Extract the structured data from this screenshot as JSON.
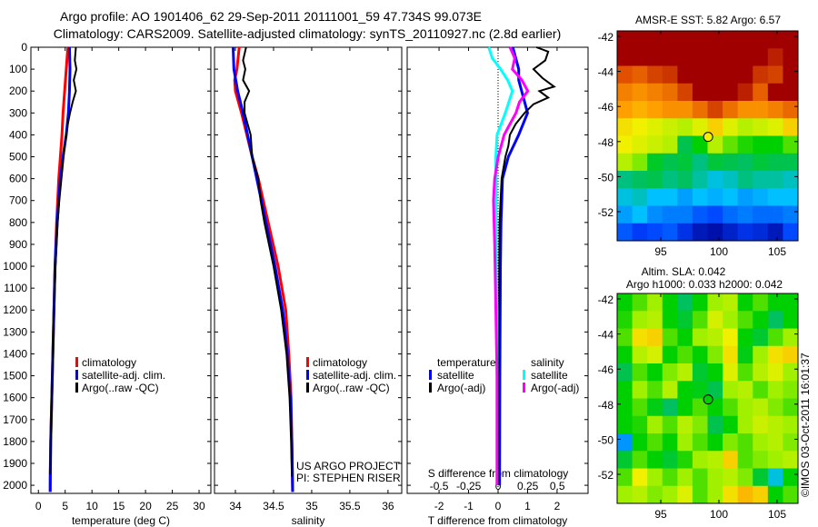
{
  "header": {
    "title_line1": "Argo profile: AO 1901406_62 29-Sep-2011 20111001_59 47.734S 99.073E",
    "title_line2": "Climatology: CARS2009. Satellite-adjusted climatology: synTS_20110927.nc (2.8d earlier)"
  },
  "credit": "©IMOS 03-Oct-2011 16:01:37",
  "colors": {
    "climatology": "#ff0000",
    "satellite": "#0000ff",
    "argo": "#000000",
    "s_satellite": "#00ffff",
    "s_argo": "#ff00ff"
  },
  "chart_data": [
    {
      "type": "line",
      "id": "temperature",
      "xlabel": "temperature (deg C)",
      "ylabel": "",
      "xlim": [
        -1.4,
        32.2
      ],
      "ylim": [
        2037,
        0
      ],
      "xticks": [
        "0",
        "5",
        "10",
        "15",
        "20",
        "25",
        "30"
      ],
      "xtick_values": [
        0,
        5,
        10,
        15,
        20,
        25,
        30
      ],
      "yticks": [
        "0",
        "100",
        "200",
        "300",
        "400",
        "500",
        "600",
        "700",
        "800",
        "900",
        "1000",
        "1100",
        "1200",
        "1300",
        "1400",
        "1500",
        "1600",
        "1700",
        "1800",
        "1900",
        "2000"
      ],
      "legend": [
        "climatology",
        "satellite-adj. clim.",
        "Argo(..raw -QC)"
      ],
      "series": [
        {
          "name": "climatology",
          "color": "#ff0000",
          "depth": [
            0,
            100,
            200,
            300,
            400,
            500,
            600,
            800,
            1000,
            1200,
            1500,
            1800,
            1950,
            2030
          ],
          "values": [
            5.5,
            5.2,
            4.9,
            4.6,
            4.4,
            4.1,
            3.8,
            3.4,
            3.1,
            2.9,
            2.6,
            2.3,
            2.2,
            2.2
          ]
        },
        {
          "name": "satellite-adj. clim.",
          "color": "#0000ff",
          "depth": [
            0,
            100,
            200,
            300,
            400,
            500,
            600,
            800,
            1000,
            1200,
            1500,
            1800,
            2030
          ],
          "values": [
            5.8,
            5.9,
            5.8,
            5.6,
            5.2,
            4.6,
            4.1,
            3.5,
            3.1,
            2.9,
            2.6,
            2.3,
            2.2
          ]
        },
        {
          "name": "Argo(..raw -QC)",
          "color": "#000000",
          "depth": [
            0,
            60,
            100,
            150,
            200,
            250,
            300,
            350,
            400,
            450,
            500,
            600,
            700,
            800,
            1000,
            1200,
            1500,
            1800,
            1950
          ],
          "values": [
            7.0,
            6.8,
            7.1,
            6.6,
            7.0,
            6.4,
            5.9,
            5.5,
            5.2,
            4.9,
            4.7,
            4.3,
            3.9,
            3.6,
            3.2,
            2.9,
            2.6,
            2.3,
            2.2
          ]
        }
      ]
    },
    {
      "type": "line",
      "id": "salinity",
      "xlabel": "salinity",
      "xlim": [
        33.726,
        36.18
      ],
      "ylim": [
        2037,
        0
      ],
      "xticks": [
        "34",
        "34.5",
        "35",
        "35.5",
        "36"
      ],
      "xtick_values": [
        34,
        34.5,
        35,
        35.5,
        36
      ],
      "legend": [
        "climatology",
        "satellite-adj. clim.",
        "Argo(..raw -QC)"
      ],
      "annotations": [
        "US ARGO PROJECT",
        "PI: STEPHEN RISER"
      ],
      "series": [
        {
          "name": "climatology",
          "color": "#ff0000",
          "depth": [
            0,
            100,
            150,
            200,
            300,
            400,
            500,
            600,
            800,
            1000,
            1200,
            1400,
            1600,
            1800,
            2030
          ],
          "values": [
            34.05,
            34.02,
            33.99,
            34.0,
            34.08,
            34.15,
            34.22,
            34.3,
            34.43,
            34.56,
            34.66,
            34.7,
            34.73,
            34.74,
            34.75
          ]
        },
        {
          "name": "satellite-adj. clim.",
          "color": "#0000ff",
          "depth": [
            0,
            100,
            200,
            300,
            400,
            500,
            600,
            800,
            1000,
            1200,
            1400,
            1600,
            1800,
            2030
          ],
          "values": [
            33.97,
            33.98,
            34.03,
            34.1,
            34.16,
            34.22,
            34.28,
            34.4,
            34.52,
            34.62,
            34.68,
            34.72,
            34.74,
            34.75
          ]
        },
        {
          "name": "Argo(..raw -QC)",
          "color": "#000000",
          "depth": [
            0,
            60,
            100,
            150,
            200,
            250,
            300,
            350,
            400,
            500,
            600,
            700,
            800,
            900,
            1000,
            1200,
            1400,
            1600,
            1800,
            1960
          ],
          "values": [
            34.14,
            34.1,
            34.13,
            34.1,
            34.18,
            34.12,
            34.12,
            34.16,
            34.2,
            34.22,
            34.3,
            34.33,
            34.38,
            34.44,
            34.5,
            34.6,
            34.67,
            34.71,
            34.73,
            34.74
          ]
        }
      ]
    },
    {
      "type": "line",
      "id": "difference",
      "xlabel": "T difference from climatology",
      "x2label": "S difference from climatology",
      "xlim": [
        -3.08,
        3.05
      ],
      "s_xlim": [
        -0.77,
        0.76
      ],
      "ylim": [
        2037,
        0
      ],
      "xticks": [
        "-2",
        "-1",
        "0",
        "1",
        "2"
      ],
      "xtick_values": [
        -2,
        -1,
        0,
        1,
        2
      ],
      "s_xticks": [
        "-0.5",
        "-0.25",
        "0",
        "0.25",
        "0.5"
      ],
      "s_xtick_values": [
        -0.5,
        -0.25,
        0,
        0.25,
        0.5
      ],
      "legend": {
        "temperature_heading": "temperature",
        "salinity_heading": "salinity",
        "t_sat": "satellite",
        "t_argo": "Argo(-adj)",
        "s_sat": "satellite",
        "s_argo": "Argo(-adj)"
      },
      "series": [
        {
          "name": "T satellite",
          "axis": "T",
          "color": "#0000ff",
          "depth": [
            0,
            50,
            100,
            150,
            200,
            300,
            400,
            500,
            600,
            800,
            1000,
            1500,
            2000
          ],
          "values": [
            0.5,
            0.6,
            0.7,
            0.7,
            0.8,
            1.0,
            0.7,
            0.35,
            0.15,
            0.1,
            0.08,
            0.06,
            0.05
          ]
        },
        {
          "name": "T Argo(-adj)",
          "color": "#000000",
          "axis": "T",
          "depth": [
            0,
            20,
            60,
            100,
            140,
            180,
            200,
            230,
            260,
            300,
            350,
            400,
            450,
            500,
            600,
            800,
            1000,
            1500,
            2000
          ],
          "values": [
            1.3,
            1.7,
            1.6,
            1.2,
            1.5,
            1.9,
            1.4,
            1.7,
            1.2,
            0.9,
            0.6,
            0.4,
            0.35,
            0.25,
            0.12,
            0.05,
            0.04,
            0.03,
            0.02
          ]
        },
        {
          "name": "S satellite",
          "axis": "S",
          "color": "#00ffff",
          "depth": [
            0,
            50,
            100,
            150,
            200,
            300,
            400,
            500,
            700,
            900,
            1200,
            1500,
            2000
          ],
          "values": [
            -0.08,
            -0.05,
            0.02,
            0.08,
            0.12,
            0.06,
            -0.01,
            -0.02,
            -0.02,
            -0.02,
            -0.01,
            -0.01,
            -0.01
          ]
        },
        {
          "name": "S Argo(-adj)",
          "axis": "S",
          "color": "#ff00ff",
          "depth": [
            0,
            50,
            100,
            150,
            200,
            250,
            300,
            400,
            500,
            600,
            700,
            900,
            1200,
            1500,
            2000
          ],
          "values": [
            0.1,
            0.14,
            0.12,
            0.2,
            0.25,
            0.18,
            0.15,
            0.05,
            0.0,
            -0.03,
            -0.04,
            -0.03,
            -0.02,
            -0.01,
            -0.01
          ]
        }
      ]
    },
    {
      "type": "heatmap",
      "id": "sst_map",
      "title": "AMSR-E SST: 5.82 Argo: 6.57",
      "xlim": [
        91.25,
        106.8
      ],
      "ylim": [
        -53.6,
        -41.7
      ],
      "xticks": [
        "95",
        "100",
        "105"
      ],
      "xtick_values": [
        95,
        100,
        105
      ],
      "yticks": [
        "-42",
        "-44",
        "-46",
        "-48",
        "-50",
        "-52"
      ],
      "ytick_values": [
        -42,
        -44,
        -46,
        -48,
        -50,
        -52
      ],
      "marker": {
        "lon": 99.073,
        "lat": -47.734,
        "value": 0.68
      },
      "grid_normalized": [
        [
          1,
          1,
          1,
          1,
          1,
          1,
          1,
          1,
          1,
          1,
          1,
          1
        ],
        [
          1,
          1,
          1,
          1,
          1,
          1,
          1,
          1,
          1,
          1,
          0.95,
          1
        ],
        [
          0.88,
          0.86,
          0.9,
          0.92,
          1,
          1,
          1,
          1,
          1,
          0.92,
          0.9,
          1
        ],
        [
          0.82,
          0.8,
          0.82,
          0.84,
          0.9,
          1,
          1,
          1,
          0.95,
          0.86,
          1,
          1
        ],
        [
          0.78,
          0.76,
          0.78,
          0.8,
          0.8,
          0.84,
          0.9,
          0.84,
          0.8,
          0.8,
          0.82,
          0.85
        ],
        [
          0.7,
          0.68,
          0.66,
          0.64,
          0.62,
          0.66,
          0.72,
          0.66,
          0.62,
          0.64,
          0.66,
          0.72
        ],
        [
          0.68,
          0.66,
          0.64,
          0.62,
          0.42,
          0.5,
          0.62,
          0.56,
          0.52,
          0.5,
          0.5,
          0.55
        ],
        [
          0.62,
          0.58,
          0.46,
          0.42,
          0.44,
          0.38,
          0.44,
          0.42,
          0.4,
          0.44,
          0.42,
          0.42
        ],
        [
          0.38,
          0.4,
          0.42,
          0.38,
          0.4,
          0.36,
          0.32,
          0.34,
          0.38,
          0.36,
          0.36,
          0.34
        ],
        [
          0.32,
          0.34,
          0.3,
          0.3,
          0.26,
          0.3,
          0.28,
          0.3,
          0.26,
          0.28,
          0.3,
          0.3
        ],
        [
          0.26,
          0.3,
          0.24,
          0.22,
          0.22,
          0.18,
          0.16,
          0.2,
          0.22,
          0.2,
          0.2,
          0.22
        ],
        [
          0.18,
          0.14,
          0.16,
          0.18,
          0.12,
          0.06,
          0.04,
          0.08,
          0.12,
          0.1,
          0.06,
          0.16
        ]
      ]
    },
    {
      "type": "heatmap",
      "id": "sla_map",
      "title": "Altim. SLA: 0.042",
      "subtitle": "Argo h1000: 0.033 h2000: 0.042",
      "xlim": [
        91.25,
        106.8
      ],
      "ylim": [
        -53.6,
        -41.7
      ],
      "xticks": [
        "95",
        "100",
        "105"
      ],
      "xtick_values": [
        95,
        100,
        105
      ],
      "yticks": [
        "-42",
        "-44",
        "-46",
        "-48",
        "-50",
        "-52"
      ],
      "ytick_values": [
        -42,
        -44,
        -46,
        -48,
        -50,
        -52
      ],
      "marker": {
        "lon": 99.073,
        "lat": -47.734,
        "value": 0.5
      },
      "grid_normalized": [
        [
          0.5,
          0.55,
          0.6,
          0.5,
          0.4,
          0.5,
          0.6,
          0.62,
          0.5,
          0.55,
          0.5,
          0.5
        ],
        [
          0.52,
          0.6,
          0.62,
          0.5,
          0.45,
          0.55,
          0.65,
          0.6,
          0.55,
          0.5,
          0.4,
          0.5
        ],
        [
          0.55,
          0.7,
          0.72,
          0.55,
          0.5,
          0.6,
          0.62,
          0.68,
          0.5,
          0.45,
          0.55,
          0.6
        ],
        [
          0.5,
          0.62,
          0.65,
          0.5,
          0.55,
          0.5,
          0.58,
          0.7,
          0.48,
          0.6,
          0.7,
          0.72
        ],
        [
          0.42,
          0.55,
          0.5,
          0.58,
          0.62,
          0.45,
          0.5,
          0.66,
          0.55,
          0.62,
          0.66,
          0.6
        ],
        [
          0.5,
          0.6,
          0.55,
          0.62,
          0.5,
          0.48,
          0.42,
          0.6,
          0.62,
          0.55,
          0.6,
          0.58
        ],
        [
          0.5,
          0.55,
          0.48,
          0.4,
          0.5,
          0.55,
          0.5,
          0.55,
          0.6,
          0.62,
          0.58,
          0.55
        ],
        [
          0.5,
          0.52,
          0.6,
          0.55,
          0.62,
          0.58,
          0.42,
          0.5,
          0.6,
          0.64,
          0.62,
          0.6
        ],
        [
          0.25,
          0.5,
          0.55,
          0.5,
          0.6,
          0.55,
          0.5,
          0.58,
          0.55,
          0.6,
          0.62,
          0.58
        ],
        [
          0.45,
          0.55,
          0.5,
          0.45,
          0.52,
          0.6,
          0.62,
          0.72,
          0.55,
          0.58,
          0.6,
          0.62
        ],
        [
          0.55,
          0.68,
          0.6,
          0.55,
          0.6,
          0.55,
          0.6,
          0.62,
          0.58,
          0.45,
          0.32,
          0.5
        ],
        [
          0.6,
          0.62,
          0.58,
          0.6,
          0.66,
          0.55,
          0.6,
          0.7,
          0.75,
          0.72,
          0.5,
          0.55
        ]
      ]
    }
  ]
}
